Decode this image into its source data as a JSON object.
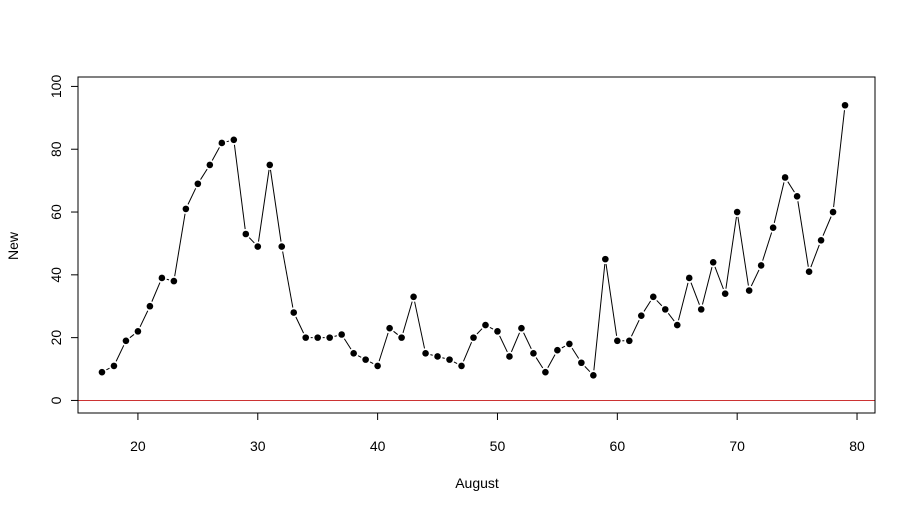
{
  "chart_data": {
    "type": "line",
    "title": "",
    "xlabel": "August",
    "ylabel": "New",
    "xlim": [
      15,
      81.5
    ],
    "ylim": [
      -4,
      103
    ],
    "x_ticks": [
      20,
      30,
      40,
      50,
      60,
      70,
      80
    ],
    "y_ticks": [
      0,
      20,
      40,
      60,
      80,
      100
    ],
    "x_tick_labels": [
      "20",
      "30",
      "40",
      "50",
      "60",
      "70",
      "80"
    ],
    "y_tick_labels": [
      "0",
      "20",
      "40",
      "60",
      "80",
      "100"
    ],
    "grid": false,
    "legend": "none",
    "markers": "filled-circle",
    "series_color": "#000000",
    "reference_line": {
      "y": 0,
      "color": "#cc3333"
    },
    "series": [
      {
        "x": [
          17,
          18,
          19,
          20,
          21,
          22,
          23,
          24,
          25,
          26,
          27,
          28,
          29,
          30,
          31,
          32,
          33,
          34,
          35,
          36,
          37,
          38,
          39,
          40,
          41,
          42,
          43,
          44,
          45,
          46,
          47,
          48,
          49,
          50,
          51,
          52,
          53,
          54,
          55,
          56,
          57,
          58,
          59,
          60,
          61,
          62,
          63,
          64,
          65,
          66,
          67,
          68,
          69,
          70,
          71,
          72,
          73,
          74,
          75,
          76,
          77,
          78,
          79
        ],
        "values": [
          9,
          11,
          19,
          22,
          30,
          39,
          38,
          61,
          69,
          75,
          82,
          83,
          53,
          49,
          75,
          49,
          28,
          20,
          20,
          20,
          21,
          15,
          13,
          11,
          23,
          20,
          33,
          15,
          14,
          13,
          11,
          20,
          24,
          22,
          14,
          23,
          15,
          9,
          16,
          18,
          12,
          8,
          45,
          19,
          19,
          27,
          33,
          29,
          24,
          39,
          29,
          44,
          34,
          60,
          35,
          43,
          55,
          71,
          65,
          41,
          51,
          60,
          94
        ]
      }
    ]
  }
}
